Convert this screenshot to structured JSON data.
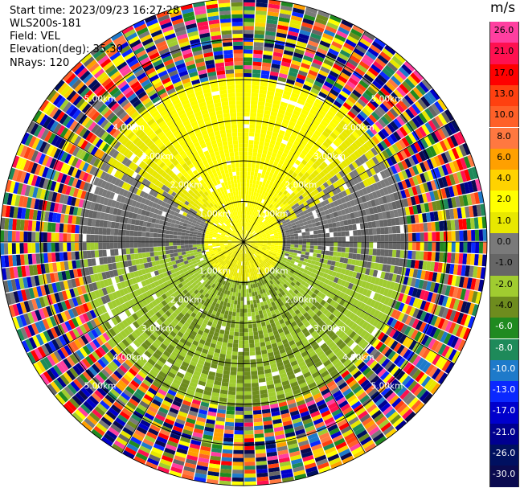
{
  "header": {
    "start_time": "Start time: 2023/09/23 16:27:28",
    "instrument": "WLS200s-181",
    "field": "Field: VEL",
    "elevation": "Elevation(deg): 35.30",
    "nrays": "NRays: 120"
  },
  "colorbar": {
    "unit": "m/s",
    "bins": [
      {
        "label": "26.0",
        "color": "#ff3fa0",
        "text_color": "#000000"
      },
      {
        "label": "21.0",
        "color": "#ff1050",
        "text_color": "#000000"
      },
      {
        "label": "17.0",
        "color": "#ff0000",
        "text_color": "#000000"
      },
      {
        "label": "13.0",
        "color": "#ff4010",
        "text_color": "#000000"
      },
      {
        "label": "10.0",
        "color": "#ff6028",
        "text_color": "#000000"
      },
      {
        "label": "8.0",
        "color": "#ff7840",
        "text_color": "#000000"
      },
      {
        "label": "6.0",
        "color": "#ffa000",
        "text_color": "#000000"
      },
      {
        "label": "4.0",
        "color": "#ffd200",
        "text_color": "#000000"
      },
      {
        "label": "2.0",
        "color": "#ffff00",
        "text_color": "#000000"
      },
      {
        "label": "1.0",
        "color": "#e8e800",
        "text_color": "#000000"
      },
      {
        "label": "0.0",
        "color": "#7a7a7a",
        "text_color": "#000000"
      },
      {
        "label": "-1.0",
        "color": "#666666",
        "text_color": "#000000"
      },
      {
        "label": "-2.0",
        "color": "#a0cc30",
        "text_color": "#000000"
      },
      {
        "label": "-4.0",
        "color": "#6e8c1e",
        "text_color": "#000000"
      },
      {
        "label": "-6.0",
        "color": "#208a20",
        "text_color": "#ffffff"
      },
      {
        "label": "-8.0",
        "color": "#1e8a5a",
        "text_color": "#ffffff"
      },
      {
        "label": "-10.0",
        "color": "#1e7aca",
        "text_color": "#ffffff"
      },
      {
        "label": "-13.0",
        "color": "#0a28ff",
        "text_color": "#ffffff"
      },
      {
        "label": "-17.0",
        "color": "#0000cc",
        "text_color": "#ffffff"
      },
      {
        "label": "-21.0",
        "color": "#000090",
        "text_color": "#ffffff"
      },
      {
        "label": "-26.0",
        "color": "#001060",
        "text_color": "#ffffff"
      },
      {
        "label": "-30.0",
        "color": "#0a0a50",
        "text_color": "#ffffff"
      }
    ]
  },
  "chart_data": {
    "type": "heatmap",
    "projection": "polar-ppi",
    "field": "VEL",
    "units": "m/s",
    "nrays": 120,
    "max_range_km": 6.0,
    "range_ring_labels": [
      "1.00km",
      "2.00km",
      "3.00km",
      "4.00km",
      "5.00km"
    ],
    "spoke_angles_deg": [
      0,
      30,
      60,
      90,
      120,
      150,
      180,
      210,
      240,
      270,
      300,
      330
    ],
    "color_levels": [
      26.0,
      21.0,
      17.0,
      13.0,
      10.0,
      8.0,
      6.0,
      4.0,
      2.0,
      1.0,
      0.0,
      -1.0,
      -2.0,
      -4.0,
      -6.0,
      -8.0,
      -10.0,
      -13.0,
      -17.0,
      -21.0,
      -26.0,
      -30.0
    ],
    "signal_pattern": {
      "description": "coherent velocity pattern within ~4.1 km; random noise beyond",
      "north_sector_velocity": 2.5,
      "west_east_velocity": 0.2,
      "south_sector_velocity": -3.0,
      "coherent_range_km": 4.1
    }
  }
}
